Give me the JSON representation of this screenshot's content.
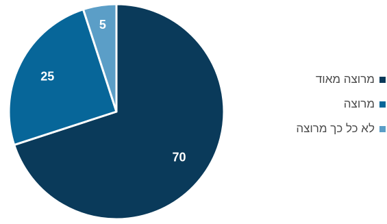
{
  "chart_data": {
    "type": "pie",
    "categories": [
      "מרוצה מאוד",
      "מרוצה",
      "לא כל כך מרוצה"
    ],
    "values": [
      70,
      25,
      5
    ],
    "colors": [
      "#0a3a5a",
      "#076699",
      "#5b9ec7"
    ],
    "label_color": "#ffffff",
    "legend_text_color": "#4a4a4a",
    "start_angle": "12 o'clock",
    "direction": "clockwise",
    "legend_position": "right"
  }
}
